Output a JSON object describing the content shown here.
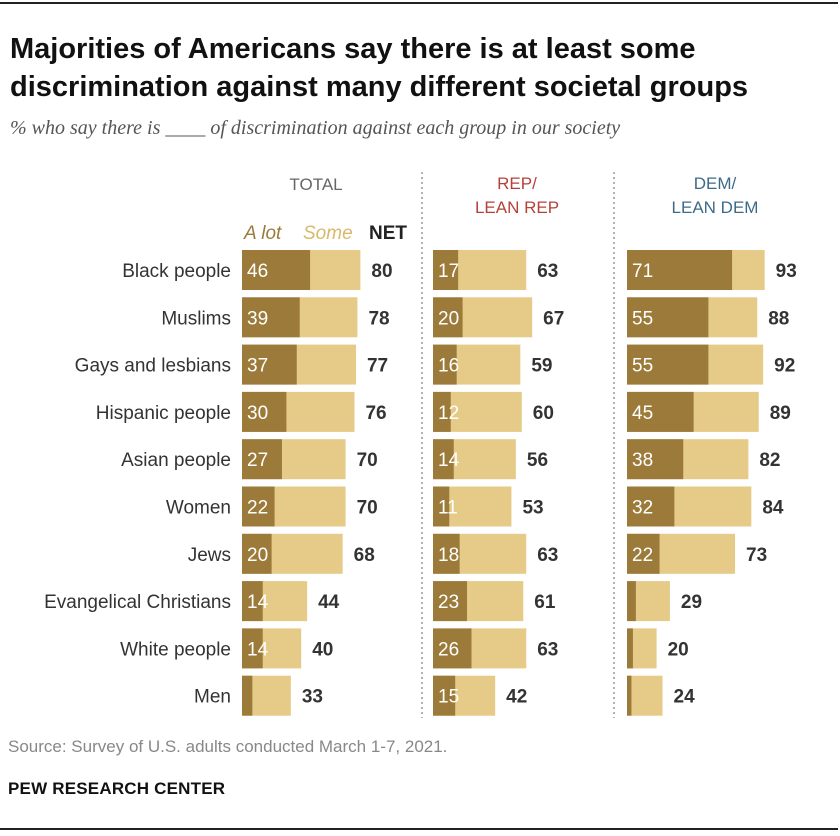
{
  "title": "Majorities of Americans say there is at least some discrimination against many different societal groups",
  "subtitle": "% who say there is ____ of discrimination against each group in our society",
  "source": "Source: Survey of U.S. adults conducted March 1-7, 2021.",
  "brand": "PEW RESEARCH CENTER",
  "colors": {
    "a_lot": "#9c7b3a",
    "some": "#e6ca88",
    "total_header": "#666666",
    "rep_header": "#b5423a",
    "dem_header": "#3e6a8a",
    "legend_a_lot": "#9c7b3a",
    "legend_some": "#d9b86a",
    "divider": "#999999"
  },
  "legend": {
    "a_lot": "A lot",
    "some": "Some",
    "net": "NET"
  },
  "chart_data": {
    "type": "bar",
    "orientation": "horizontal",
    "stacked": true,
    "categories": [
      "Black people",
      "Muslims",
      "Gays and lesbians",
      "Hispanic people",
      "Asian people",
      "Women",
      "Jews",
      "Evangelical Christians",
      "White people",
      "Men"
    ],
    "segment_names": [
      "A lot",
      "Some"
    ],
    "panels": [
      {
        "name": "TOTAL",
        "a_lot": [
          46,
          39,
          37,
          30,
          27,
          22,
          20,
          14,
          14,
          7
        ],
        "a_lot_labels": [
          "46",
          "39",
          "37",
          "30",
          "27",
          "22",
          "20",
          "14",
          "14",
          ""
        ],
        "net": [
          80,
          78,
          77,
          76,
          70,
          70,
          68,
          44,
          40,
          33
        ]
      },
      {
        "name": "REP/\nLEAN REP",
        "a_lot": [
          17,
          20,
          16,
          12,
          14,
          11,
          18,
          23,
          26,
          15
        ],
        "a_lot_labels": [
          "17",
          "20",
          "16",
          "12",
          "14",
          "11",
          "18",
          "23",
          "26",
          "15"
        ],
        "net": [
          63,
          67,
          59,
          60,
          56,
          53,
          63,
          61,
          63,
          42
        ]
      },
      {
        "name": "DEM/\nLEAN DEM",
        "a_lot": [
          71,
          55,
          55,
          45,
          38,
          32,
          22,
          6,
          4,
          3
        ],
        "a_lot_labels": [
          "71",
          "55",
          "55",
          "45",
          "38",
          "32",
          "22",
          "",
          "",
          ""
        ],
        "net": [
          93,
          88,
          92,
          89,
          82,
          84,
          73,
          29,
          20,
          24
        ]
      }
    ]
  }
}
